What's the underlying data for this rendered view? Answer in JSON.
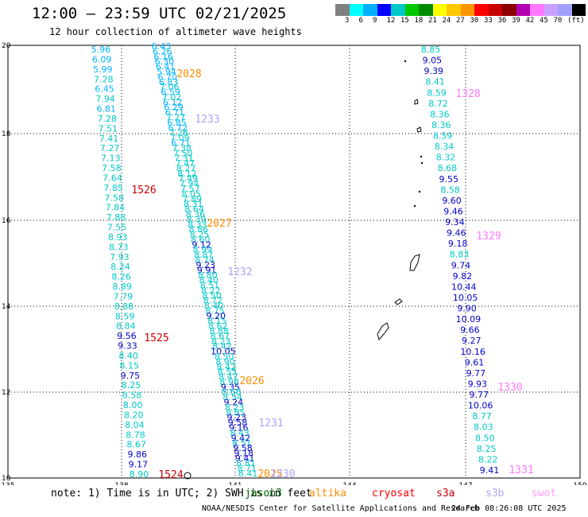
{
  "header": {
    "title": "12:00 – 23:59 UTC 02/21/2025",
    "subtitle": "12 hour collection of altimeter wave heights"
  },
  "colorbar": {
    "colors": [
      "#808080",
      "#00ffff",
      "#00b0ff",
      "#0000ff",
      "#00c8c8",
      "#00c800",
      "#008c00",
      "#ffff00",
      "#ffc800",
      "#ff9600",
      "#ff0000",
      "#c80000",
      "#8c0000",
      "#b400b4",
      "#ff78ff",
      "#c8a0ff",
      "#a0a0ff",
      "#000000"
    ],
    "labels": [
      "3",
      "6",
      "9",
      "12",
      "15",
      "18",
      "21",
      "24",
      "27",
      "30",
      "33",
      "36",
      "39",
      "42",
      "45",
      "70",
      "(ft)"
    ]
  },
  "axes": {
    "lon_labels": [
      "135",
      "138",
      "141",
      "144",
      "147",
      "150"
    ],
    "lat_labels": [
      "20",
      "18",
      "16",
      "14",
      "12",
      "10"
    ]
  },
  "tracks": {
    "t1": [
      "5.96",
      "6.09",
      "5.99",
      "7.28",
      "6.45",
      "7.94",
      "6.81",
      "7.28",
      "7.51",
      "7.41",
      "7.27",
      "7.13",
      "7.58",
      "7.64",
      "7.85",
      "7.58",
      "7.84",
      "7.88",
      "7.55",
      "8.93",
      "8.73",
      "7.93",
      "8.24",
      "8.26",
      "8.89",
      "7.79",
      "8.88",
      "8.59",
      "8.84",
      "9.56",
      "9.33",
      "8.40",
      "8.15",
      "9.75",
      "8.25",
      "8.58",
      "8.00",
      "8.20",
      "8.04",
      "8.78",
      "8.67",
      "9.86",
      "9.17",
      "8.90"
    ],
    "t2": [
      "6.43",
      "6.26",
      "6.16",
      "6.30",
      "6.41",
      "5.94",
      "6.70",
      "6.83",
      "7.06",
      "6.59",
      "7.02",
      "6.12",
      "6.29",
      "6.71",
      "7.27",
      "6.85",
      "6.72",
      "7.26",
      "7.09",
      "6.71",
      "7.38",
      "7.50",
      "7.31",
      "7.47",
      "8.27",
      "8.12",
      "7.49",
      "7.94",
      "7.57",
      "8.05",
      "7.89",
      "8.31",
      "8.64",
      "8.36",
      "8.39",
      "8.33",
      "8.86",
      "8.25",
      "8.60",
      "9.12",
      "8.99",
      "8.87",
      "8.74",
      "9.23",
      "9.91",
      "8.80",
      "8.40",
      "8.51",
      "8.22",
      "8.50",
      "8.72",
      "8.40",
      "8.75",
      "9.20",
      "8.15",
      "8.62",
      "8.88",
      "8.67",
      "8.23",
      "8.42",
      "10.05",
      "8.50",
      "8.90",
      "8.42",
      "8.55",
      "8.47",
      "8.98",
      "9.35",
      "8.68",
      "8.54",
      "9.24",
      "8.23",
      "8.85",
      "9.23",
      "9.58",
      "9.16",
      "8.43",
      "9.42",
      "8.51",
      "9.58",
      "9.18",
      "9.41",
      "8.81",
      "8.71",
      "8.41"
    ],
    "t3": [
      "8.85",
      "9.05",
      "9.39",
      "8.41",
      "8.59",
      "8.72",
      "8.36",
      "8.36",
      "8.59",
      "8.34",
      "8.32",
      "8.68",
      "9.55",
      "8.58",
      "9.60",
      "9.46",
      "9.34",
      "9.46",
      "9.18",
      "8.83",
      "9.74",
      "9.82",
      "10.44",
      "10.05",
      "9.90",
      "10.09",
      "9.66",
      "9.27",
      "10.16",
      "9.61",
      "9.77",
      "9.93",
      "9.77",
      "10.06",
      "8.77",
      "8.03",
      "8.50",
      "8.25",
      "8.22",
      "9.41"
    ]
  },
  "time_labels": [
    {
      "text": "2028",
      "color": "#ff8c00"
    },
    {
      "text": "1328",
      "color": "#ff78ff"
    },
    {
      "text": "1233",
      "color": "#b4a0ff"
    },
    {
      "text": "1526",
      "color": "#c80000"
    },
    {
      "text": "2027",
      "color": "#ff8c00"
    },
    {
      "text": "1329",
      "color": "#ff78ff"
    },
    {
      "text": "1232",
      "color": "#b4a0ff"
    },
    {
      "text": "1525",
      "color": "#c80000"
    },
    {
      "text": "2026",
      "color": "#ff8c00"
    },
    {
      "text": "1330",
      "color": "#ff78ff"
    },
    {
      "text": "1231",
      "color": "#b4a0ff"
    },
    {
      "text": "1524",
      "color": "#c80000"
    },
    {
      "text": "2025",
      "color": "#ff8c00"
    },
    {
      "text": "1331",
      "color": "#ff78ff"
    },
    {
      "text": "1230",
      "color": "#b4a0ff"
    }
  ],
  "footer": {
    "note": "note: 1) Time is in UTC; 2) SWH is in feet",
    "legend": [
      {
        "name": "jason3",
        "color": "#006400"
      },
      {
        "name": "altika",
        "color": "#ff8c00"
      },
      {
        "name": "cryosat",
        "color": "#ff0000"
      },
      {
        "name": "s3a",
        "color": "#c80000"
      },
      {
        "name": "s3b",
        "color": "#b4a0ff"
      },
      {
        "name": "swot",
        "color": "#ff9cff"
      }
    ],
    "credit": "NOAA/NESDIS Center for Satellite Applications and Research",
    "timestamp": "24 Feb 08:26:08 UTC 2025"
  },
  "value_colors": {
    "light": "#00b4ff",
    "cyan": "#00c8c8",
    "blue": "#0000c8"
  }
}
